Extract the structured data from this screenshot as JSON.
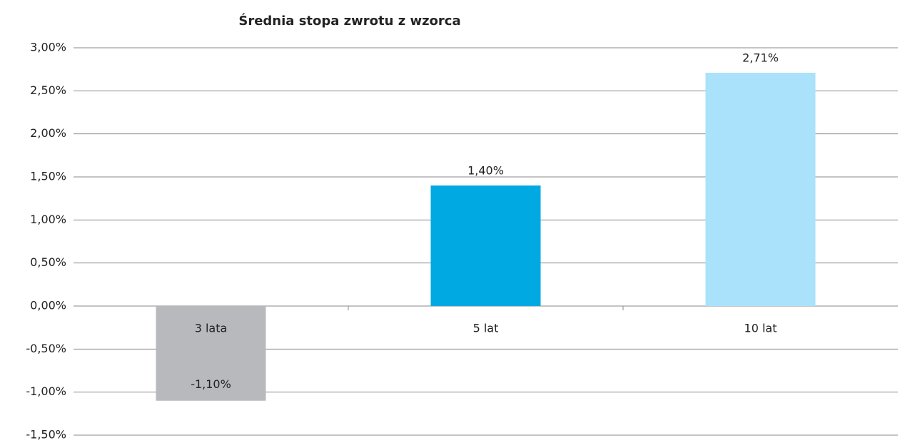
{
  "chart_data": {
    "type": "bar",
    "title": "Średnia stopa zwrotu z wzorca",
    "categories": [
      "3 lata",
      "5 lat",
      "10 lat"
    ],
    "values": [
      -1.1,
      1.4,
      2.71
    ],
    "value_labels": [
      "-1,10%",
      "1,40%",
      "2,71%"
    ],
    "colors": [
      "#b8b9bd",
      "#00a9e2",
      "#aae1fb"
    ],
    "ylim": [
      -1.5,
      3
    ],
    "yticks": [
      {
        "value": -1.5,
        "label": "-1,50%"
      },
      {
        "value": -1,
        "label": "-1,00%"
      },
      {
        "value": -0.5,
        "label": "-0,50%"
      },
      {
        "value": 0,
        "label": "0,00%"
      },
      {
        "value": 0.5,
        "label": "0,50%"
      },
      {
        "value": 1,
        "label": "1,00%"
      },
      {
        "value": 1.5,
        "label": "1,50%"
      },
      {
        "value": 2,
        "label": "2,00%"
      },
      {
        "value": 2.5,
        "label": "2,50%"
      },
      {
        "value": 3,
        "label": "3,00%"
      }
    ],
    "grid": true
  }
}
